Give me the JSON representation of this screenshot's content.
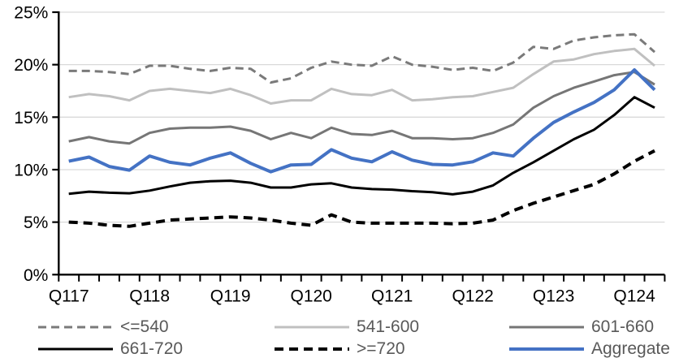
{
  "chart_data": {
    "type": "line",
    "title": "",
    "xlabel": "",
    "ylabel": "",
    "ylim": [
      0,
      25
    ],
    "y_tick_step": 5,
    "y_tick_labels": [
      "0%",
      "5%",
      "10%",
      "15%",
      "20%",
      "25%"
    ],
    "x_tick_labels": [
      "Q117",
      "Q118",
      "Q119",
      "Q120",
      "Q121",
      "Q122",
      "Q123",
      "Q124"
    ],
    "points_per_x_label": 4,
    "n_points": 30,
    "grid": "horizontal-only",
    "gridline_color": "#d9d9d9",
    "axis_color": "#000000",
    "legend_position": "bottom",
    "legend_rows": [
      [
        "<=540",
        "541-600",
        "601-660"
      ],
      [
        "661-720",
        ">=720",
        "Aggregate"
      ]
    ],
    "series": [
      {
        "name": "<=540",
        "color": "#7a7a7a",
        "dash": "10 6",
        "width": 3,
        "values": [
          19.4,
          19.4,
          19.3,
          19.1,
          19.9,
          19.9,
          19.6,
          19.4,
          19.7,
          19.6,
          18.3,
          18.7,
          19.7,
          20.3,
          20.0,
          19.9,
          20.8,
          20.0,
          19.8,
          19.5,
          19.7,
          19.4,
          20.2,
          21.7,
          21.5,
          22.3,
          22.6,
          22.8,
          22.9,
          21.2
        ]
      },
      {
        "name": "541-600",
        "color": "#c0c0c0",
        "dash": null,
        "width": 3,
        "values": [
          16.9,
          17.2,
          17.0,
          16.6,
          17.5,
          17.7,
          17.5,
          17.3,
          17.7,
          17.1,
          16.3,
          16.6,
          16.6,
          17.7,
          17.2,
          17.1,
          17.6,
          16.6,
          16.7,
          16.9,
          17.0,
          17.4,
          17.8,
          19.1,
          20.3,
          20.5,
          21.0,
          21.3,
          21.5,
          19.9
        ]
      },
      {
        "name": "601-660",
        "color": "#767676",
        "dash": null,
        "width": 3,
        "values": [
          12.7,
          13.1,
          12.7,
          12.5,
          13.5,
          13.9,
          14.0,
          14.0,
          14.1,
          13.7,
          12.9,
          13.5,
          13.0,
          14.0,
          13.4,
          13.3,
          13.7,
          13.0,
          13.0,
          12.9,
          13.0,
          13.5,
          14.3,
          15.9,
          17.0,
          17.8,
          18.4,
          19.0,
          19.3,
          18.1
        ]
      },
      {
        "name": "661-720",
        "color": "#000000",
        "dash": null,
        "width": 3,
        "values": [
          7.7,
          7.9,
          7.8,
          7.75,
          8.0,
          8.4,
          8.75,
          8.9,
          8.95,
          8.75,
          8.3,
          8.3,
          8.6,
          8.7,
          8.3,
          8.15,
          8.1,
          7.95,
          7.85,
          7.65,
          7.9,
          8.5,
          9.7,
          10.7,
          11.8,
          12.9,
          13.8,
          15.2,
          16.9,
          15.9
        ]
      },
      {
        "name": ">=720",
        "color": "#000000",
        "dash": "11 7",
        "width": 4,
        "values": [
          5.0,
          4.9,
          4.7,
          4.6,
          4.9,
          5.2,
          5.3,
          5.4,
          5.5,
          5.4,
          5.2,
          4.9,
          4.7,
          5.7,
          5.0,
          4.9,
          4.9,
          4.9,
          4.9,
          4.85,
          4.9,
          5.2,
          6.1,
          6.8,
          7.4,
          8.0,
          8.6,
          9.6,
          10.8,
          11.8
        ]
      },
      {
        "name": "Aggregate",
        "color": "#4472c4",
        "dash": null,
        "width": 4,
        "values": [
          10.8,
          11.2,
          10.3,
          9.95,
          11.3,
          10.7,
          10.45,
          11.1,
          11.6,
          10.6,
          9.8,
          10.45,
          10.5,
          11.9,
          11.1,
          10.75,
          11.7,
          10.9,
          10.5,
          10.45,
          10.75,
          11.6,
          11.3,
          13.0,
          14.5,
          15.5,
          16.4,
          17.6,
          19.5,
          17.6
        ]
      }
    ]
  }
}
